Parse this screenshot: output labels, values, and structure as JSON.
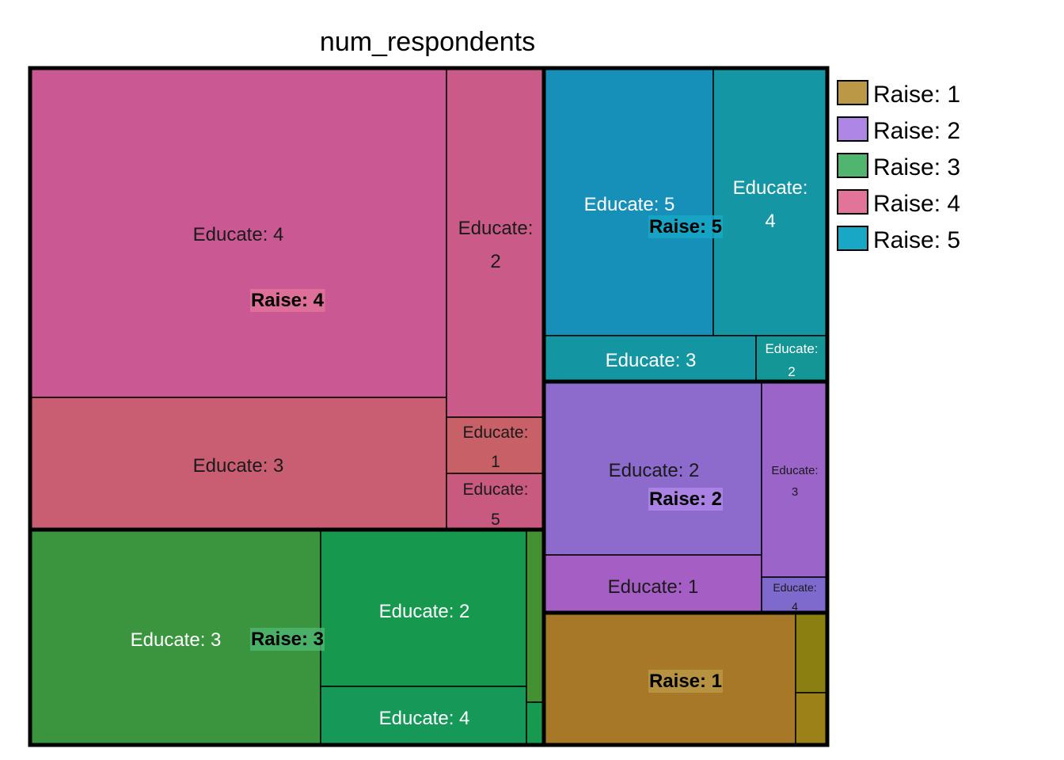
{
  "chart_data": {
    "type": "treemap",
    "title": "num_respondents",
    "legend": {
      "placement": "right",
      "entries": [
        {
          "label": "Raise: 1",
          "color": "#BA9845"
        },
        {
          "label": "Raise: 2",
          "color": "#AE86E6"
        },
        {
          "label": "Raise: 3",
          "color": "#4FB56F"
        },
        {
          "label": "Raise: 4",
          "color": "#E27399"
        },
        {
          "label": "Raise: 5",
          "color": "#18A8C5"
        }
      ]
    },
    "groups": [
      {
        "name": "Raise: 4",
        "label_bg": "#E27399",
        "leaves": [
          {
            "name": "Educate: 4",
            "color": "#CA5893",
            "text_color": "#1a1a1a"
          },
          {
            "name": "Educate: 3",
            "color": "#C95E72",
            "text_color": "#1a1a1a"
          },
          {
            "name": "Educate: 2",
            "color": "#CA5B88",
            "text_color": "#1a1a1a"
          },
          {
            "name": "Educate: 1",
            "color": "#C76067",
            "text_color": "#1a1a1a"
          },
          {
            "name": "Educate: 5",
            "color": "#C8597F",
            "text_color": "#1a1a1a"
          }
        ]
      },
      {
        "name": "Raise: 3",
        "label_bg": "#4FB56F",
        "leaves": [
          {
            "name": "Educate: 3",
            "color": "#3A953E",
            "text_color": "#ffffff"
          },
          {
            "name": "Educate: 2",
            "color": "#16984E",
            "text_color": "#ffffff"
          },
          {
            "name": "Educate: 4",
            "color": "#169858",
            "text_color": "#ffffff"
          },
          {
            "name": "",
            "color": "#469034",
            "text_color": "#ffffff"
          },
          {
            "name": "",
            "color": "#179A50",
            "text_color": "#ffffff"
          }
        ]
      },
      {
        "name": "Raise: 5",
        "label_bg": "#18A8C5",
        "leaves": [
          {
            "name": "Educate: 5",
            "color": "#168FB9",
            "text_color": "#ffffff"
          },
          {
            "name": "Educate: 4",
            "color": "#1496A4",
            "text_color": "#ffffff"
          },
          {
            "name": "Educate: 3",
            "color": "#1495A2",
            "text_color": "#ffffff"
          },
          {
            "name": "Educate: 2",
            "color": "#159696",
            "text_color": "#ffffff"
          }
        ]
      },
      {
        "name": "Raise: 2",
        "label_bg": "#AE86E6",
        "leaves": [
          {
            "name": "Educate: 2",
            "color": "#8C6BCC",
            "text_color": "#1a1a1a"
          },
          {
            "name": "Educate: 1",
            "color": "#A55EC4",
            "text_color": "#1a1a1a"
          },
          {
            "name": "Educate: 3",
            "color": "#9B64C9",
            "text_color": "#1a1a1a"
          },
          {
            "name": "Educate: 4",
            "color": "#7D6ACC",
            "text_color": "#1a1a1a"
          }
        ]
      },
      {
        "name": "Raise: 1",
        "label_bg": "#BA9845",
        "leaves": [
          {
            "name": "",
            "color": "#A87829",
            "text_color": "#1a1a1a"
          },
          {
            "name": "",
            "color": "#8C7F12",
            "text_color": "#1a1a1a"
          },
          {
            "name": "",
            "color": "#9C8118",
            "text_color": "#1a1a1a"
          }
        ]
      }
    ]
  }
}
